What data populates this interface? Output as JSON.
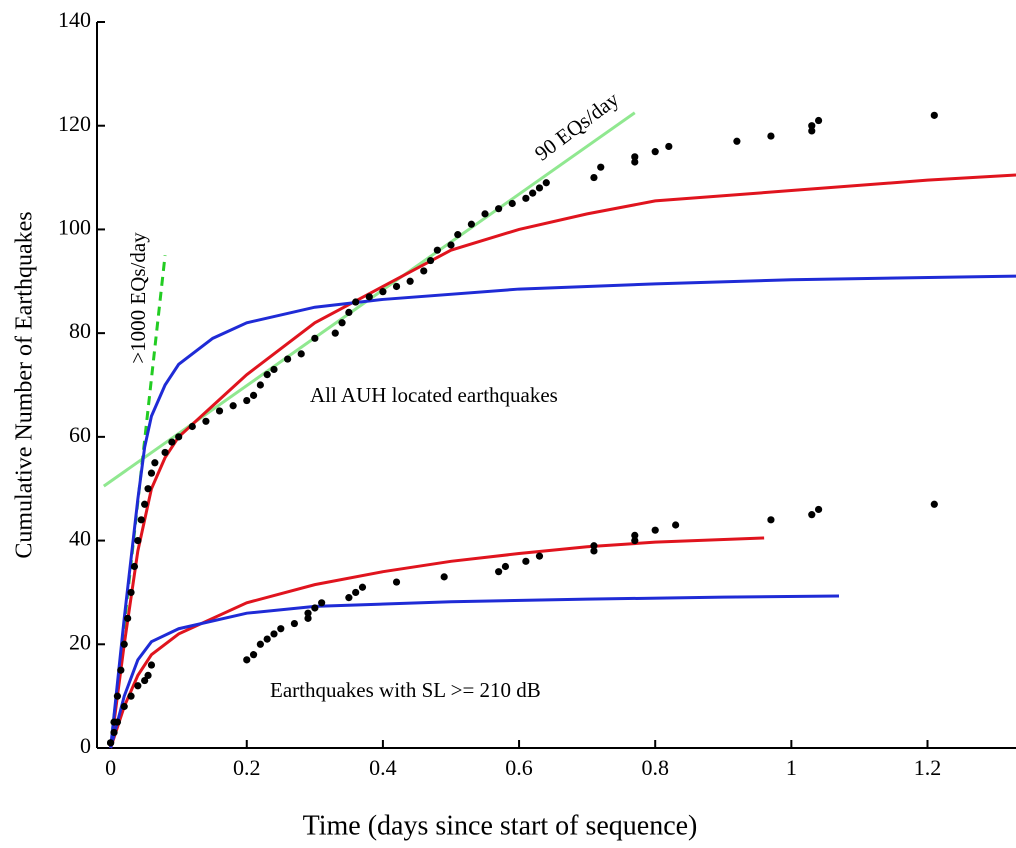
{
  "chart_data": {
    "type": "scatter",
    "x_label": "Time (days since start of sequence)",
    "y_label": "Cumulative Number of Earthquakes",
    "xlim": [
      -0.02,
      1.33
    ],
    "ylim": [
      0,
      140
    ],
    "xticks": [
      0,
      0.2,
      0.4,
      0.6,
      0.8,
      1,
      1.2
    ],
    "yticks": [
      0,
      20,
      40,
      60,
      80,
      100,
      120,
      140
    ],
    "grid": false,
    "annotations": [
      "90 EQs/day",
      ">1000 EQs/day",
      "All AUH located earthquakes",
      "Earthquakes with SL >= 210 dB"
    ],
    "series": [
      {
        "type": "line",
        "color": "#90e890",
        "dash": false,
        "x": [
          -0.01,
          0.77
        ],
        "values": [
          50.5,
          122.5
        ]
      },
      {
        "type": "line",
        "color": "#22cc22",
        "dash": true,
        "x": [
          0,
          0.08
        ],
        "values": [
          0,
          95
        ]
      },
      {
        "type": "line",
        "color": "#e0141e",
        "dash": false,
        "x": [
          0,
          0.02,
          0.04,
          0.06,
          0.08,
          0.1,
          0.15,
          0.2,
          0.3,
          0.4,
          0.5,
          0.6,
          0.7,
          0.8,
          1.0,
          1.2,
          1.33
        ],
        "values": [
          0,
          20,
          38,
          50,
          56,
          60,
          66,
          72,
          82,
          89,
          96,
          100,
          103,
          105.5,
          107.5,
          109.5,
          110.5
        ]
      },
      {
        "type": "line",
        "color": "#1f2bd6",
        "dash": false,
        "x": [
          0,
          0.02,
          0.04,
          0.05,
          0.06,
          0.08,
          0.1,
          0.15,
          0.2,
          0.3,
          0.4,
          0.6,
          0.8,
          1.0,
          1.33
        ],
        "values": [
          0,
          25,
          48,
          58,
          64,
          70,
          74,
          79,
          82,
          85,
          86.5,
          88.5,
          89.5,
          90.3,
          91
        ]
      },
      {
        "type": "line",
        "color": "#e0141e",
        "dash": false,
        "x": [
          0,
          0.02,
          0.04,
          0.06,
          0.1,
          0.2,
          0.3,
          0.4,
          0.5,
          0.6,
          0.7,
          0.8,
          0.96
        ],
        "values": [
          0,
          8,
          14,
          18,
          22,
          28,
          31.5,
          34,
          36,
          37.5,
          38.8,
          39.7,
          40.5
        ]
      },
      {
        "type": "line",
        "color": "#1f2bd6",
        "dash": false,
        "x": [
          0,
          0.02,
          0.04,
          0.06,
          0.1,
          0.2,
          0.3,
          0.5,
          0.7,
          0.9,
          1.07
        ],
        "values": [
          0,
          10,
          17,
          20.5,
          23,
          26,
          27.3,
          28.2,
          28.7,
          29.1,
          29.3
        ]
      },
      {
        "type": "scatter",
        "color": "#000000",
        "x": [
          0,
          0.005,
          0.01,
          0.015,
          0.02,
          0.025,
          0.03,
          0.035,
          0.04,
          0.045,
          0.05,
          0.055,
          0.06,
          0.065,
          0.08,
          0.09,
          0.1,
          0.12,
          0.14,
          0.16,
          0.18,
          0.2,
          0.21,
          0.22,
          0.23,
          0.24,
          0.26,
          0.28,
          0.3,
          0.33,
          0.34,
          0.35,
          0.36,
          0.38,
          0.4,
          0.42,
          0.44,
          0.46,
          0.47,
          0.48,
          0.5,
          0.51,
          0.53,
          0.55,
          0.57,
          0.59,
          0.61,
          0.62,
          0.63,
          0.64,
          0.71,
          0.72,
          0.77,
          0.77,
          0.8,
          0.82,
          0.92,
          0.97,
          1.03,
          1.03,
          1.04,
          1.21
        ],
        "values": [
          1,
          5,
          10,
          15,
          20,
          25,
          30,
          35,
          40,
          44,
          47,
          50,
          53,
          55,
          57,
          59,
          60,
          62,
          63,
          65,
          66,
          67,
          68,
          70,
          72,
          73,
          75,
          76,
          79,
          80,
          82,
          84,
          86,
          87,
          88,
          89,
          90,
          92,
          94,
          96,
          97,
          99,
          101,
          103,
          104,
          105,
          106,
          107,
          108,
          109,
          110,
          112,
          113,
          114,
          115,
          116,
          117,
          118,
          119,
          120,
          121,
          122
        ]
      },
      {
        "type": "scatter",
        "color": "#000000",
        "x": [
          0,
          0.005,
          0.01,
          0.02,
          0.03,
          0.04,
          0.05,
          0.055,
          0.06,
          0.2,
          0.21,
          0.22,
          0.23,
          0.24,
          0.25,
          0.27,
          0.29,
          0.29,
          0.3,
          0.31,
          0.35,
          0.36,
          0.37,
          0.42,
          0.49,
          0.57,
          0.58,
          0.61,
          0.63,
          0.71,
          0.71,
          0.77,
          0.77,
          0.8,
          0.83,
          0.97,
          1.03,
          1.04,
          1.21
        ],
        "values": [
          1,
          3,
          5,
          8,
          10,
          12,
          13,
          14,
          16,
          17,
          18,
          20,
          21,
          22,
          23,
          24,
          25,
          26,
          27,
          28,
          29,
          30,
          31,
          32,
          33,
          34,
          35,
          36,
          37,
          38,
          39,
          40,
          41,
          42,
          43,
          44,
          45,
          46,
          47
        ]
      }
    ]
  }
}
